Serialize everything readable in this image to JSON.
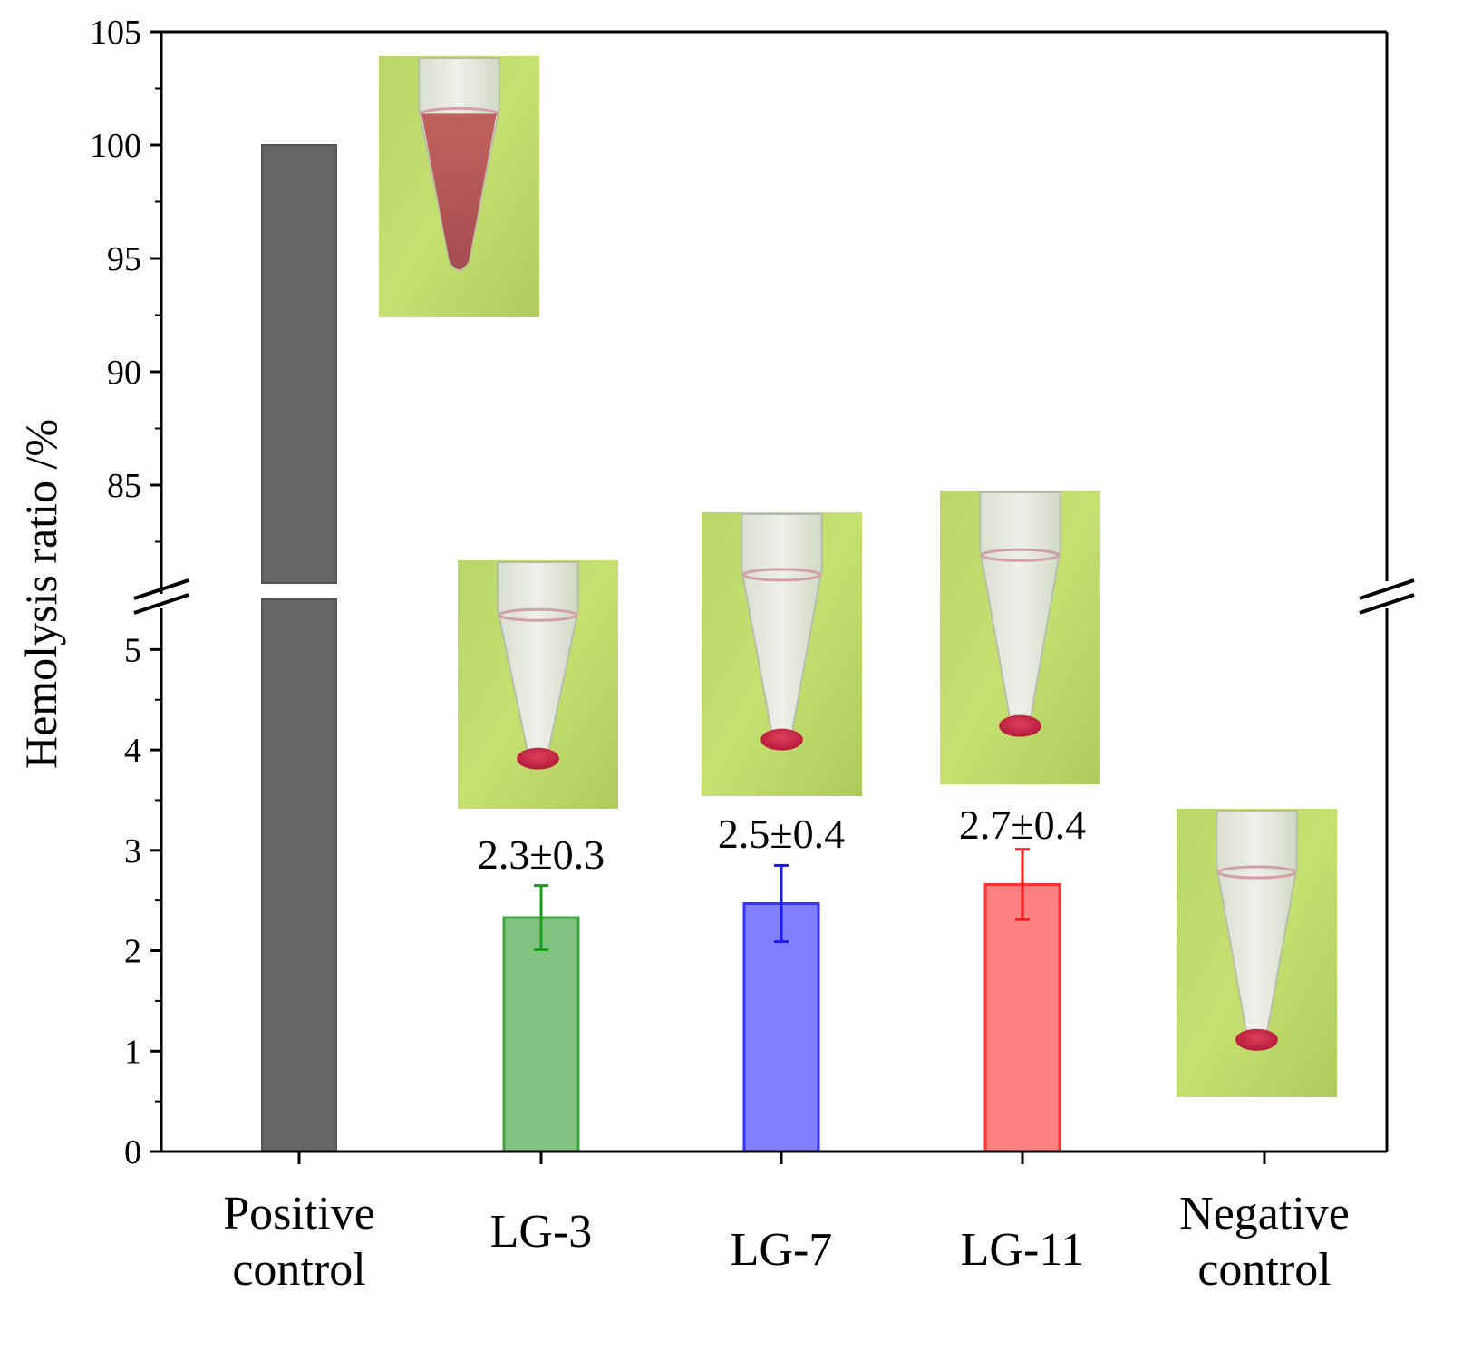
{
  "chart_data": {
    "type": "bar",
    "title": "",
    "xlabel": "",
    "ylabel": "Hemolysis ratio /%",
    "categories": [
      [
        "Positive",
        "control"
      ],
      [
        "LG-3"
      ],
      [
        "LG-7"
      ],
      [
        "LG-11"
      ],
      [
        "Negative",
        "control"
      ]
    ],
    "values": [
      100,
      2.33,
      2.47,
      2.66,
      0
    ],
    "errors": [
      null,
      0.32,
      0.38,
      0.35,
      null
    ],
    "annotations": [
      null,
      "2.3±0.3",
      "2.5±0.4",
      "2.7±0.4",
      null
    ],
    "colors": {
      "bars": [
        "#666666",
        "#82c382",
        "#8080ff",
        "#ff8080",
        "#cccccc"
      ],
      "bar_edges": [
        "#555555",
        "#3fa63f",
        "#3333ff",
        "#ff3333",
        "#999999"
      ],
      "error_bars": [
        null,
        "#1a9e1a",
        "#1a1aff",
        "#ff1a1a",
        null
      ]
    },
    "axis_break": true,
    "y_lower_segment": {
      "range": [
        0,
        5.5
      ],
      "major_ticks": [
        0,
        1,
        2,
        3,
        4,
        5
      ],
      "minor_step": 0.5
    },
    "y_upper_segment": {
      "range": [
        80.2,
        105
      ],
      "major_ticks": [
        85,
        90,
        95,
        100,
        105
      ],
      "minor_step": 2.5
    },
    "inset_photos": [
      {
        "category": "Positive control",
        "liquid": "red"
      },
      {
        "category": "LG-3",
        "liquid": "clear"
      },
      {
        "category": "LG-7",
        "liquid": "clear"
      },
      {
        "category": "LG-11",
        "liquid": "clear"
      },
      {
        "category": "Negative control",
        "liquid": "clear"
      }
    ]
  }
}
